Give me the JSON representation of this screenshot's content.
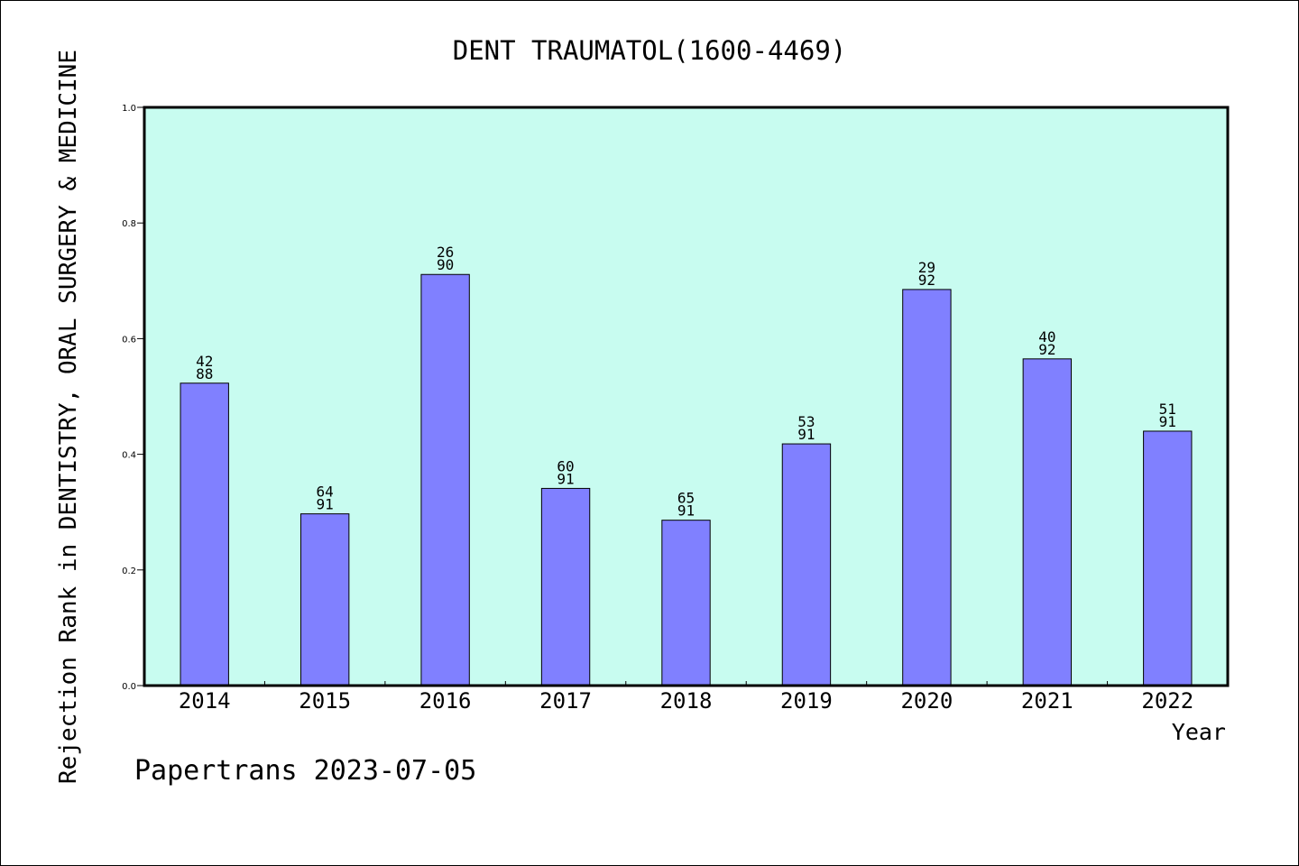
{
  "chart_data": {
    "type": "bar",
    "title": "DENT TRAUMATOL(1600-4469)",
    "xlabel": "Year",
    "ylabel": "Rejection Rank in DENTISTRY, ORAL SURGERY & MEDICINE",
    "categories": [
      "2014",
      "2015",
      "2016",
      "2017",
      "2018",
      "2019",
      "2020",
      "2021",
      "2022"
    ],
    "values": [
      0.523,
      0.297,
      0.711,
      0.341,
      0.286,
      0.418,
      0.685,
      0.565,
      0.44
    ],
    "labels_top": [
      "42",
      "64",
      "26",
      "60",
      "65",
      "53",
      "29",
      "40",
      "51"
    ],
    "labels_bottom": [
      "88",
      "91",
      "90",
      "91",
      "91",
      "91",
      "92",
      "92",
      "91"
    ],
    "ylim": [
      0,
      1
    ],
    "yticks": [
      "0.0",
      "0.2",
      "0.4",
      "0.6",
      "0.8",
      "1.0"
    ],
    "grid": false,
    "colors": {
      "plot_background": "#c8fcf0",
      "bar_fill": "#8080ff",
      "bar_edge": "#000000"
    }
  },
  "footer": "Papertrans 2023-07-05"
}
